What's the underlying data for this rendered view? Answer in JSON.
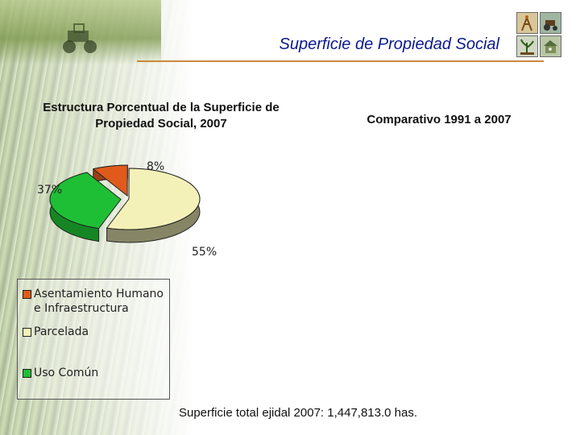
{
  "page": {
    "title": "Superficie de Propiedad Social",
    "right_heading": "Comparativo 1991 a 2007",
    "footer": "Superficie total ejidal 2007: 1,447,813.0  has."
  },
  "icons": [
    "wheat-icon",
    "tractor-icon",
    "plant-icon",
    "barn-icon"
  ],
  "chart_data": {
    "type": "pie",
    "title": "Estructura Porcentual de la Superficie de Propiedad Social, 2007",
    "categories": [
      "Asentamiento Humano e Infraestructura",
      "Parcelada",
      "Uso Común"
    ],
    "values": [
      8,
      55,
      37
    ],
    "labels": [
      "8%",
      "55%",
      "37%"
    ],
    "colors": [
      "#e05a1c",
      "#f4f1b8",
      "#1fbf35"
    ],
    "legend": [
      "Asentamiento Humano e Infraestructura",
      "Parcelada",
      "Uso Común"
    ],
    "legend_position": "bottom-left"
  }
}
